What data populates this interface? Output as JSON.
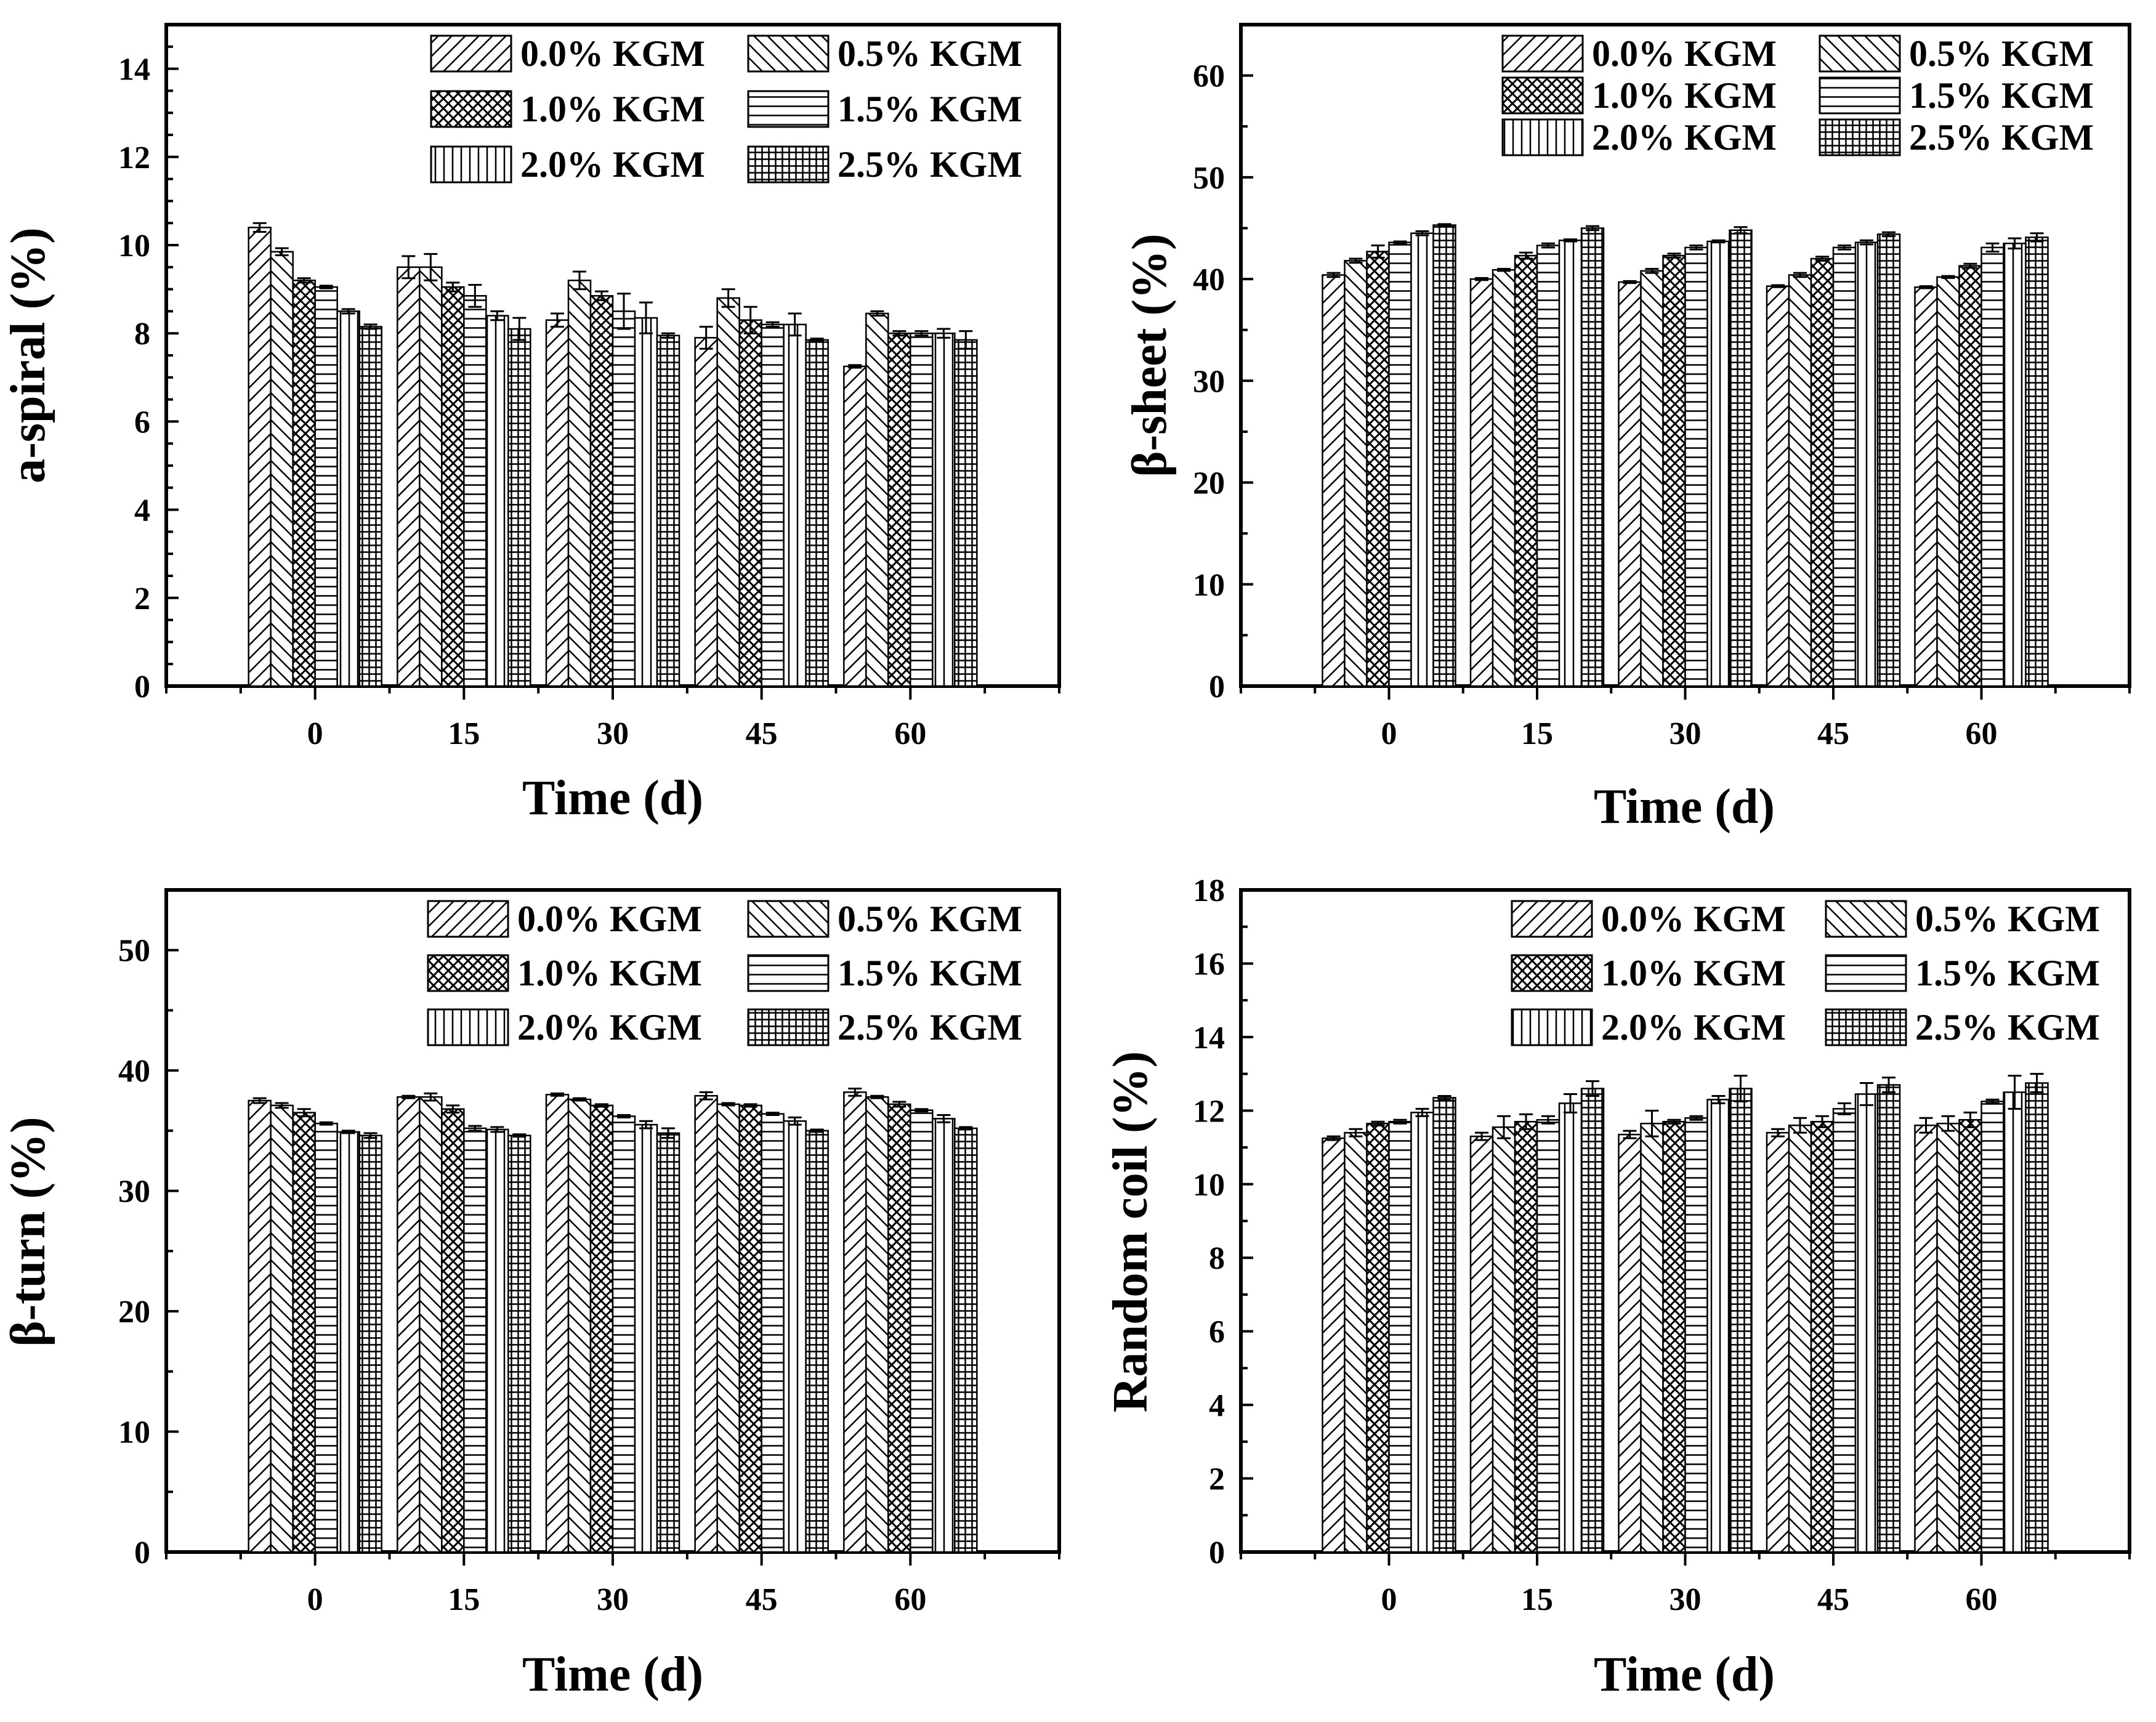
{
  "legend_names": [
    "0.0% KGM",
    "0.5% KGM",
    "1.0% KGM",
    "1.5% KGM",
    "2.0% KGM",
    "2.5% KGM"
  ],
  "chart_data": [
    {
      "type": "bar",
      "panel": "top-left",
      "title": "",
      "xlabel": "Time (d)",
      "ylabel": "a-spiral (%)",
      "categories": [
        "0",
        "15",
        "30",
        "45",
        "60"
      ],
      "ylim": [
        0,
        15
      ],
      "yticks": [
        "0",
        "2",
        "4",
        "6",
        "8",
        "10",
        "12",
        "14"
      ],
      "legend_position": "top-right",
      "series": [
        {
          "name": "0.0% KGM",
          "values": [
            10.4,
            9.5,
            8.3,
            7.9,
            7.25
          ],
          "errors": [
            0.1,
            0.25,
            0.15,
            0.25,
            0.03
          ]
        },
        {
          "name": "0.5% KGM",
          "values": [
            9.85,
            9.5,
            9.2,
            8.8,
            8.45
          ],
          "errors": [
            0.08,
            0.3,
            0.2,
            0.2,
            0.05
          ]
        },
        {
          "name": "1.0% KGM",
          "values": [
            9.2,
            9.05,
            8.85,
            8.3,
            8.0
          ],
          "errors": [
            0.05,
            0.1,
            0.1,
            0.3,
            0.05
          ]
        },
        {
          "name": "1.5% KGM",
          "values": [
            9.05,
            8.85,
            8.5,
            8.2,
            8.0
          ],
          "errors": [
            0.03,
            0.25,
            0.4,
            0.05,
            0.05
          ]
        },
        {
          "name": "2.0% KGM",
          "values": [
            8.5,
            8.4,
            8.35,
            8.2,
            8.0
          ],
          "errors": [
            0.05,
            0.1,
            0.35,
            0.25,
            0.1
          ]
        },
        {
          "name": "2.5% KGM",
          "values": [
            8.15,
            8.1,
            7.95,
            7.85,
            7.85
          ],
          "errors": [
            0.05,
            0.25,
            0.05,
            0.03,
            0.2
          ]
        }
      ]
    },
    {
      "type": "bar",
      "panel": "top-right",
      "title": "",
      "xlabel": "Time (d)",
      "ylabel": "β-sheet (%)",
      "categories": [
        "0",
        "15",
        "30",
        "45",
        "60"
      ],
      "ylim": [
        0,
        65
      ],
      "yticks": [
        "0",
        "10",
        "20",
        "30",
        "40",
        "50",
        "60"
      ],
      "legend_position": "top-right",
      "series": [
        {
          "name": "0.0% KGM",
          "values": [
            40.4,
            40.0,
            39.7,
            39.3,
            39.2
          ],
          "errors": [
            0.2,
            0.1,
            0.1,
            0.1,
            0.1
          ]
        },
        {
          "name": "0.5% KGM",
          "values": [
            41.8,
            40.9,
            40.8,
            40.4,
            40.2
          ],
          "errors": [
            0.2,
            0.1,
            0.2,
            0.2,
            0.1
          ]
        },
        {
          "name": "1.0% KGM",
          "values": [
            42.7,
            42.3,
            42.3,
            42.0,
            41.3
          ],
          "errors": [
            0.6,
            0.3,
            0.2,
            0.2,
            0.2
          ]
        },
        {
          "name": "1.5% KGM",
          "values": [
            43.6,
            43.3,
            43.1,
            43.1,
            43.1
          ],
          "errors": [
            0.1,
            0.2,
            0.2,
            0.2,
            0.4
          ]
        },
        {
          "name": "2.0% KGM",
          "values": [
            44.5,
            43.8,
            43.7,
            43.6,
            43.5
          ],
          "errors": [
            0.2,
            0.1,
            0.1,
            0.2,
            0.5
          ]
        },
        {
          "name": "2.5% KGM",
          "values": [
            45.3,
            45.0,
            44.8,
            44.4,
            44.1
          ],
          "errors": [
            0.1,
            0.2,
            0.3,
            0.2,
            0.4
          ]
        }
      ]
    },
    {
      "type": "bar",
      "panel": "bottom-left",
      "title": "",
      "xlabel": "Time (d)",
      "ylabel": "β-turn (%)",
      "categories": [
        "0",
        "15",
        "30",
        "45",
        "60"
      ],
      "ylim": [
        0,
        55
      ],
      "yticks": [
        "0",
        "10",
        "20",
        "30",
        "40",
        "50"
      ],
      "legend_position": "top-right",
      "series": [
        {
          "name": "0.0% KGM",
          "values": [
            37.5,
            37.8,
            38.0,
            37.9,
            38.2
          ],
          "errors": [
            0.2,
            0.1,
            0.1,
            0.3,
            0.3
          ]
        },
        {
          "name": "0.5% KGM",
          "values": [
            37.1,
            37.8,
            37.6,
            37.2,
            37.8
          ],
          "errors": [
            0.2,
            0.3,
            0.1,
            0.1,
            0.1
          ]
        },
        {
          "name": "1.0% KGM",
          "values": [
            36.5,
            36.8,
            37.1,
            37.1,
            37.2
          ],
          "errors": [
            0.3,
            0.3,
            0.1,
            0.1,
            0.2
          ]
        },
        {
          "name": "1.5% KGM",
          "values": [
            35.6,
            35.2,
            36.2,
            36.4,
            36.7
          ],
          "errors": [
            0.1,
            0.2,
            0.1,
            0.1,
            0.1
          ]
        },
        {
          "name": "2.0% KGM",
          "values": [
            34.9,
            35.1,
            35.5,
            35.8,
            36.0
          ],
          "errors": [
            0.1,
            0.2,
            0.3,
            0.3,
            0.3
          ]
        },
        {
          "name": "2.5% KGM",
          "values": [
            34.6,
            34.6,
            34.8,
            35.0,
            35.2
          ],
          "errors": [
            0.2,
            0.1,
            0.4,
            0.1,
            0.1
          ]
        }
      ]
    },
    {
      "type": "bar",
      "panel": "bottom-right",
      "title": "",
      "xlabel": "Time (d)",
      "ylabel": "Random coil (%)",
      "categories": [
        "0",
        "15",
        "30",
        "45",
        "60"
      ],
      "ylim": [
        0,
        18
      ],
      "yticks": [
        "0",
        "2",
        "4",
        "6",
        "8",
        "10",
        "12",
        "14",
        "16",
        "18"
      ],
      "legend_position": "top-right",
      "series": [
        {
          "name": "0.0% KGM",
          "values": [
            11.25,
            11.3,
            11.35,
            11.4,
            11.6
          ],
          "errors": [
            0.05,
            0.1,
            0.1,
            0.1,
            0.2
          ]
        },
        {
          "name": "0.5% KGM",
          "values": [
            11.4,
            11.55,
            11.65,
            11.6,
            11.65
          ],
          "errors": [
            0.1,
            0.3,
            0.35,
            0.2,
            0.2
          ]
        },
        {
          "name": "1.0% KGM",
          "values": [
            11.65,
            11.7,
            11.7,
            11.7,
            11.75
          ],
          "errors": [
            0.05,
            0.2,
            0.05,
            0.15,
            0.2
          ]
        },
        {
          "name": "1.5% KGM",
          "values": [
            11.7,
            11.75,
            11.8,
            12.05,
            12.25
          ],
          "errors": [
            0.05,
            0.1,
            0.05,
            0.15,
            0.05
          ]
        },
        {
          "name": "2.0% KGM",
          "values": [
            11.95,
            12.2,
            12.3,
            12.45,
            12.5
          ],
          "errors": [
            0.1,
            0.25,
            0.1,
            0.3,
            0.45
          ]
        },
        {
          "name": "2.5% KGM",
          "values": [
            12.35,
            12.6,
            12.6,
            12.7,
            12.75
          ],
          "errors": [
            0.05,
            0.2,
            0.35,
            0.2,
            0.25
          ]
        }
      ]
    }
  ]
}
